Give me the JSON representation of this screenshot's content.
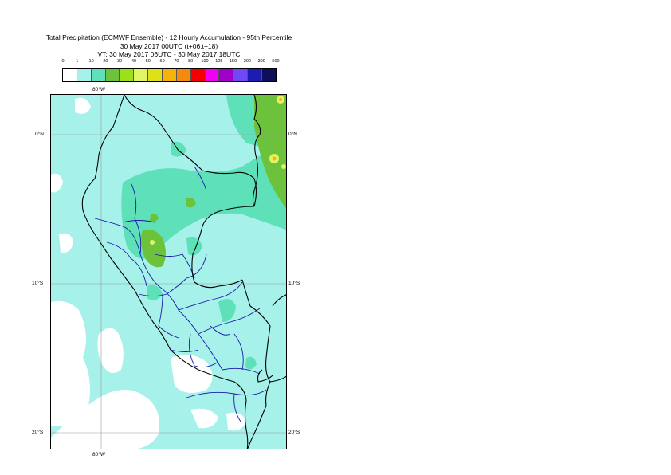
{
  "title": {
    "line1": "Total Precipitation (ECMWF Ensemble) - 12 Hourly Accumulation - 95th Percentile",
    "line2": "30 May 2017 00UTC (t+06,t+18)",
    "line3": "VT: 30 May 2017 06UTC - 30 May 2017 18UTC"
  },
  "legend": {
    "levels": [
      "0",
      "1",
      "10",
      "20",
      "30",
      "40",
      "50",
      "60",
      "70",
      "80",
      "100",
      "125",
      "150",
      "200",
      "300",
      "500"
    ],
    "colors": [
      "#ffffff",
      "#a6f1ea",
      "#5ee0b8",
      "#6cc23a",
      "#9ce019",
      "#e0f565",
      "#e0e01a",
      "#f5b30c",
      "#f58a0c",
      "#f50000",
      "#f000f5",
      "#a000c8",
      "#7048f5",
      "#1c1cb0",
      "#0e0e5a"
    ]
  },
  "axes": {
    "lon_top": "80°W",
    "lon_bottom": "80°W",
    "lat_left": [
      "0°N",
      "10°S",
      "20°S"
    ],
    "lat_right": [
      "0°N",
      "10°S",
      "20°S"
    ]
  },
  "colors": {
    "ocean_light": "#a6f1ea",
    "rain_medium": "#5ee0b8",
    "rain_heavy": "#6cc23a",
    "rain_peak": "#e0f565",
    "country_border": "#000000",
    "region_border": "#1a1aa8",
    "graticule": "#9a9a9a"
  }
}
